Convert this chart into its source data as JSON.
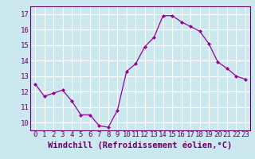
{
  "x": [
    0,
    1,
    2,
    3,
    4,
    5,
    6,
    7,
    8,
    9,
    10,
    11,
    12,
    13,
    14,
    15,
    16,
    17,
    18,
    19,
    20,
    21,
    22,
    23
  ],
  "y": [
    12.5,
    11.7,
    11.9,
    12.1,
    11.4,
    10.5,
    10.5,
    9.8,
    9.7,
    10.8,
    13.3,
    13.8,
    14.9,
    15.5,
    16.9,
    16.9,
    16.5,
    16.2,
    15.9,
    15.1,
    13.9,
    13.5,
    13.0,
    12.8
  ],
  "line_color": "#990099",
  "marker": "D",
  "marker_size": 2.0,
  "bg_color": "#cce8ef",
  "grid_color": "#ffffff",
  "xlabel": "Windchill (Refroidissement éolien,°C)",
  "ylabel_ticks": [
    10,
    11,
    12,
    13,
    14,
    15,
    16,
    17
  ],
  "ylim": [
    9.5,
    17.5
  ],
  "xlim": [
    -0.5,
    23.5
  ],
  "tick_fontsize": 6.5,
  "xlabel_fontsize": 7.5,
  "label_color": "#660066",
  "axis_color": "#660066",
  "spine_color": "#660066"
}
